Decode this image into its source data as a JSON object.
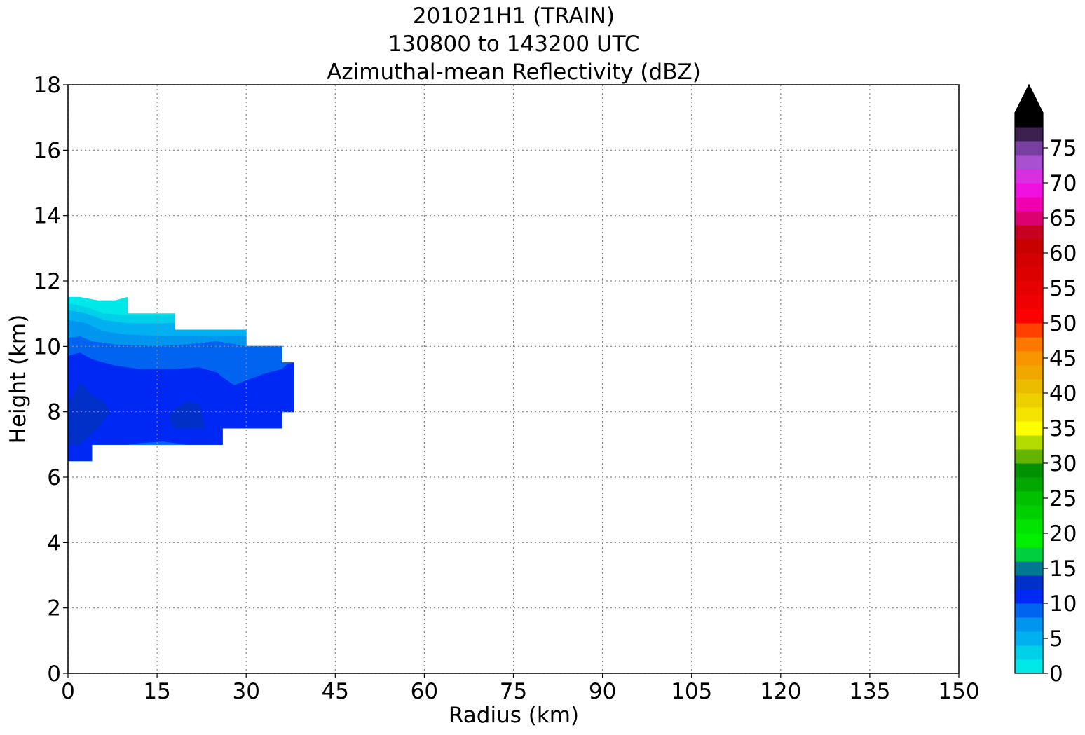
{
  "chart_data": {
    "type": "contourf",
    "title": [
      "201021H1 (TRAIN)",
      "130800 to 143200 UTC",
      "Azimuthal-mean Reflectivity (dBZ)"
    ],
    "xlabel": "Radius (km)",
    "ylabel": "Height (km)",
    "xlim": [
      0,
      150
    ],
    "xticks": [
      0,
      15,
      30,
      45,
      60,
      75,
      90,
      105,
      120,
      135,
      150
    ],
    "ylim": [
      0,
      18
    ],
    "yticks": [
      0,
      2,
      4,
      6,
      8,
      10,
      12,
      14,
      16,
      18
    ],
    "grid": true,
    "colorbar": {
      "levels": [
        0,
        2,
        4,
        6,
        8,
        10,
        12,
        14,
        16,
        18,
        20,
        22,
        24,
        26,
        28,
        30,
        32,
        34,
        36,
        38,
        40,
        42,
        44,
        46,
        48,
        50,
        52,
        54,
        56,
        58,
        60,
        62,
        64,
        66,
        68,
        70,
        72,
        74,
        76,
        78,
        80
      ],
      "colors": [
        "#00e8e8",
        "#00d0e8",
        "#00b0f0",
        "#0096f0",
        "#0064f0",
        "#0028f5",
        "#0030c8",
        "#007890",
        "#00d040",
        "#00f000",
        "#00e400",
        "#00d000",
        "#00c000",
        "#00a800",
        "#009000",
        "#64b400",
        "#b4dc00",
        "#ffff00",
        "#f4e400",
        "#ecd000",
        "#ecbc00",
        "#f0a800",
        "#f89600",
        "#ff7800",
        "#ff4000",
        "#ff0000",
        "#f00000",
        "#e60000",
        "#dc0000",
        "#d20000",
        "#c80000",
        "#c80020",
        "#dc0070",
        "#f000b0",
        "#f010e0",
        "#d830e0",
        "#a850d0",
        "#7840a0",
        "#3c2050",
        "#000000"
      ],
      "over_color": "#000000",
      "ticks": [
        0,
        5,
        10,
        15,
        20,
        25,
        30,
        35,
        40,
        45,
        50,
        55,
        60,
        65,
        70,
        75
      ]
    },
    "contours": [
      {
        "level": 0,
        "x": [
          0,
          0,
          2,
          5,
          8,
          10,
          10,
          18,
          18,
          30,
          30,
          36,
          36,
          38,
          38,
          36,
          36,
          26,
          26,
          4,
          4
        ],
        "y": [
          6.5,
          11.5,
          11.5,
          11.4,
          11.4,
          11.5,
          11,
          11,
          10.5,
          10.5,
          10,
          10,
          9.5,
          9.5,
          8,
          8,
          7.5,
          7.5,
          7,
          7,
          6.5
        ]
      },
      {
        "level": 2,
        "x": [
          0,
          0,
          3,
          6,
          10,
          18,
          18,
          30,
          30,
          36,
          36,
          38,
          38,
          36,
          36,
          26,
          26,
          4,
          4
        ],
        "y": [
          6.5,
          11.3,
          11.2,
          11,
          10.95,
          10.95,
          10.5,
          10.5,
          10,
          10,
          9.5,
          9.5,
          8,
          8,
          7.5,
          7.5,
          7,
          7,
          6.5
        ]
      },
      {
        "level": 4,
        "x": [
          0,
          0,
          3,
          6,
          10,
          18,
          18,
          30,
          30,
          36,
          36,
          38,
          38,
          36,
          36,
          26,
          26,
          4,
          4
        ],
        "y": [
          6.5,
          11.1,
          11,
          10.8,
          10.7,
          10.7,
          10.5,
          10.5,
          10,
          10,
          9.5,
          9.5,
          8,
          8,
          7.5,
          7.5,
          7,
          7,
          6.5
        ]
      },
      {
        "level": 6,
        "x": [
          0,
          0,
          3,
          6,
          10,
          18,
          30,
          30,
          36,
          36,
          38,
          38,
          36,
          36,
          26,
          26,
          4,
          4
        ],
        "y": [
          6.5,
          10.8,
          10.7,
          10.45,
          10.35,
          10.3,
          10.3,
          10,
          10,
          9.5,
          9.5,
          8,
          8,
          7.5,
          7.5,
          7,
          7,
          6.5
        ]
      },
      {
        "level": 8,
        "x": [
          0,
          0,
          2,
          4,
          8,
          15,
          20,
          25,
          30,
          36,
          36,
          38,
          38,
          36,
          36,
          26,
          26,
          4,
          4
        ],
        "y": [
          6.5,
          10.25,
          10.3,
          10.15,
          10.05,
          10,
          10.05,
          10.15,
          10,
          10,
          9.5,
          9.5,
          8,
          8,
          7.5,
          7.5,
          7,
          7,
          6.5
        ]
      },
      {
        "level": 10,
        "x": [
          0,
          0,
          2,
          4,
          8,
          12,
          18,
          22,
          25,
          26,
          28,
          30,
          33,
          36,
          37,
          38,
          38,
          36,
          36,
          26,
          26,
          20,
          16,
          12,
          10,
          4,
          4
        ],
        "y": [
          6.5,
          9.7,
          9.8,
          9.6,
          9.4,
          9.3,
          9.3,
          9.35,
          9.2,
          9.05,
          8.8,
          8.95,
          9.15,
          9.3,
          9.45,
          9.5,
          8,
          8,
          7.5,
          7.5,
          7,
          7,
          7.1,
          7.05,
          7,
          7,
          6.5
        ]
      },
      {
        "level": 12,
        "x": [
          0,
          0,
          2,
          4,
          6,
          7,
          5,
          3,
          2
        ],
        "y": [
          7,
          8.2,
          8.9,
          8.5,
          8.3,
          8,
          7.5,
          7.2,
          7
        ]
      },
      {
        "level": 12,
        "x": [
          17,
          18,
          20,
          22,
          23,
          18
        ],
        "y": [
          7.8,
          8.1,
          8.3,
          8.25,
          7.5,
          7.5
        ]
      }
    ]
  }
}
